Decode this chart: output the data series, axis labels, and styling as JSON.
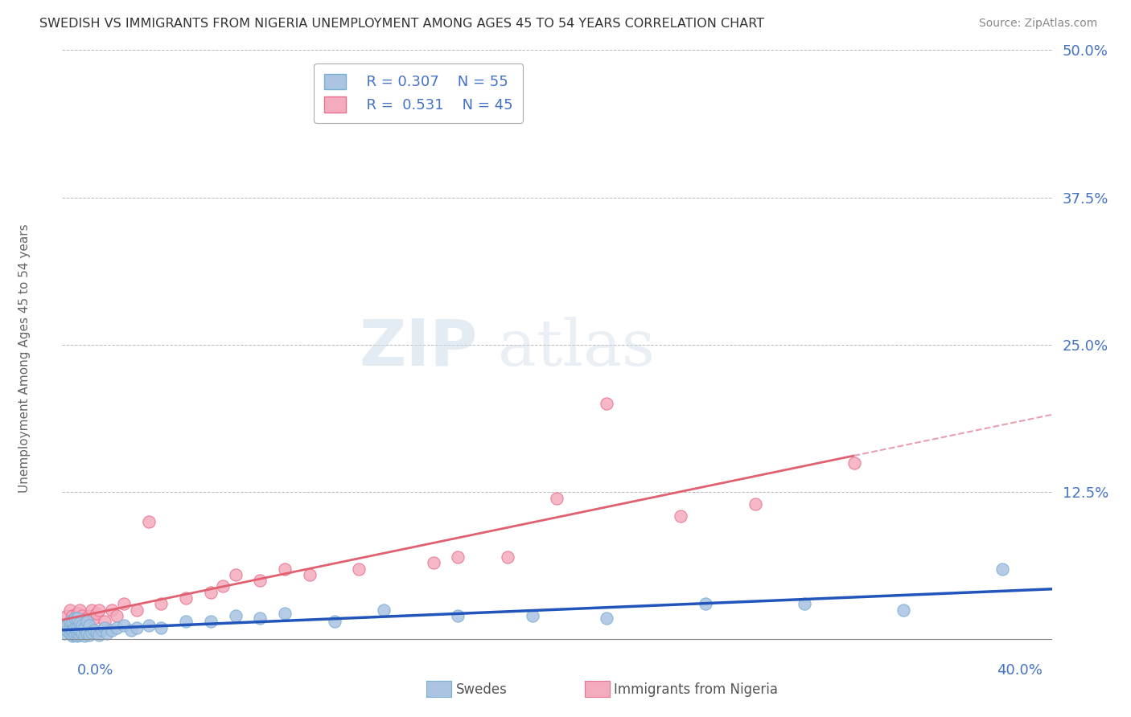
{
  "title": "SWEDISH VS IMMIGRANTS FROM NIGERIA UNEMPLOYMENT AMONG AGES 45 TO 54 YEARS CORRELATION CHART",
  "source": "Source: ZipAtlas.com",
  "ylabel": "Unemployment Among Ages 45 to 54 years",
  "xlabel_bottom_left": "0.0%",
  "xlabel_bottom_right": "40.0%",
  "xlim": [
    0.0,
    0.4
  ],
  "ylim": [
    -0.005,
    0.5
  ],
  "yticks": [
    0.0,
    0.125,
    0.25,
    0.375,
    0.5
  ],
  "ytick_labels": [
    "",
    "12.5%",
    "25.0%",
    "37.5%",
    "50.0%"
  ],
  "legend_r1": "R = 0.307",
  "legend_n1": "N = 55",
  "legend_r2": "R =  0.531",
  "legend_n2": "N = 45",
  "series1_label": "Swedes",
  "series2_label": "Immigrants from Nigeria",
  "series1_color": "#aac4e2",
  "series2_color": "#f5abbe",
  "series1_edge": "#7aafd4",
  "series2_edge": "#e87090",
  "trendline1_color": "#2255bb",
  "trendline2_color": "#e06070",
  "trendline2_dashed_color": "#e8a0b0",
  "grid_color": "#bbbbbb",
  "background_color": "#ffffff",
  "swedes_x": [
    0.001,
    0.002,
    0.002,
    0.003,
    0.003,
    0.003,
    0.004,
    0.004,
    0.004,
    0.005,
    0.005,
    0.005,
    0.006,
    0.006,
    0.006,
    0.006,
    0.007,
    0.007,
    0.007,
    0.008,
    0.008,
    0.009,
    0.009,
    0.01,
    0.01,
    0.011,
    0.011,
    0.012,
    0.013,
    0.014,
    0.015,
    0.016,
    0.017,
    0.018,
    0.02,
    0.022,
    0.025,
    0.028,
    0.03,
    0.035,
    0.04,
    0.05,
    0.06,
    0.07,
    0.08,
    0.09,
    0.11,
    0.13,
    0.16,
    0.19,
    0.22,
    0.26,
    0.3,
    0.34,
    0.38
  ],
  "swedes_y": [
    0.005,
    0.008,
    0.012,
    0.005,
    0.01,
    0.015,
    0.003,
    0.008,
    0.015,
    0.004,
    0.01,
    0.018,
    0.003,
    0.006,
    0.01,
    0.018,
    0.004,
    0.008,
    0.014,
    0.005,
    0.012,
    0.003,
    0.01,
    0.005,
    0.015,
    0.004,
    0.012,
    0.006,
    0.008,
    0.006,
    0.004,
    0.008,
    0.01,
    0.005,
    0.008,
    0.01,
    0.012,
    0.008,
    0.01,
    0.012,
    0.01,
    0.015,
    0.015,
    0.02,
    0.018,
    0.022,
    0.015,
    0.025,
    0.02,
    0.02,
    0.018,
    0.03,
    0.03,
    0.025,
    0.06
  ],
  "nigeria_x": [
    0.001,
    0.002,
    0.002,
    0.003,
    0.003,
    0.004,
    0.004,
    0.005,
    0.005,
    0.006,
    0.006,
    0.007,
    0.007,
    0.008,
    0.008,
    0.009,
    0.01,
    0.011,
    0.012,
    0.013,
    0.014,
    0.015,
    0.017,
    0.02,
    0.022,
    0.025,
    0.03,
    0.035,
    0.04,
    0.05,
    0.06,
    0.065,
    0.07,
    0.08,
    0.09,
    0.1,
    0.12,
    0.15,
    0.16,
    0.18,
    0.2,
    0.22,
    0.25,
    0.28,
    0.32
  ],
  "nigeria_y": [
    0.01,
    0.012,
    0.02,
    0.015,
    0.025,
    0.01,
    0.02,
    0.012,
    0.018,
    0.015,
    0.022,
    0.018,
    0.025,
    0.012,
    0.02,
    0.015,
    0.018,
    0.02,
    0.025,
    0.018,
    0.022,
    0.025,
    0.015,
    0.025,
    0.02,
    0.03,
    0.025,
    0.1,
    0.03,
    0.035,
    0.04,
    0.045,
    0.055,
    0.05,
    0.06,
    0.055,
    0.06,
    0.065,
    0.07,
    0.07,
    0.12,
    0.2,
    0.105,
    0.115,
    0.15
  ]
}
